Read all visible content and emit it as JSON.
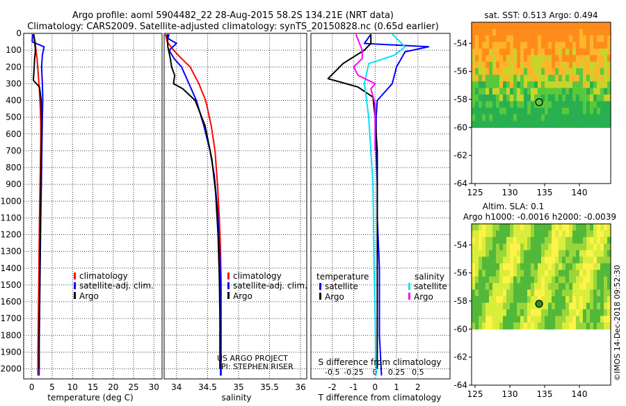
{
  "header": {
    "line1": "Argo profile: aoml 5904482_22 28-Aug-2015 58.2S 134.21E (NRT data)",
    "line2": "Climatology: CARS2009. Satellite-adjusted climatology: synTS_20150828.nc (0.65d earlier)"
  },
  "chart_data": [
    {
      "type": "line",
      "name": "temperature-profile",
      "xlabel": "temperature (deg C)",
      "ylabel": "depth (dbar)",
      "xlim": [
        -2,
        32
      ],
      "ylim": [
        2060,
        0
      ],
      "xticks": [
        0,
        5,
        10,
        15,
        20,
        25,
        30
      ],
      "yticks": [
        0,
        100,
        200,
        300,
        400,
        500,
        600,
        700,
        800,
        900,
        1000,
        1100,
        1200,
        1300,
        1400,
        1500,
        1600,
        1700,
        1800,
        1900,
        2000
      ],
      "legend": [
        "climatology",
        "satellite-adj. clim.",
        "Argo"
      ],
      "series": [
        {
          "name": "climatology",
          "color": "#ff0000",
          "x": [
            0.4,
            0.8,
            1.0,
            1.3,
            1.6,
            1.9,
            2.1,
            2.2,
            2.2,
            2.1,
            2.0,
            1.9,
            1.8,
            1.7,
            1.6,
            1.5,
            1.5
          ],
          "y": [
            5,
            50,
            100,
            150,
            250,
            350,
            450,
            550,
            650,
            800,
            950,
            1100,
            1300,
            1500,
            1700,
            1900,
            2040
          ]
        },
        {
          "name": "satellite-adj. clim.",
          "color": "#0000ff",
          "x": [
            0.2,
            0.1,
            3.0,
            2.6,
            2.4,
            2.6,
            2.7,
            2.6,
            2.5,
            2.4,
            2.3,
            2.2,
            2.1,
            2.0,
            1.9,
            1.8,
            1.8
          ],
          "y": [
            5,
            50,
            80,
            130,
            200,
            300,
            400,
            500,
            650,
            800,
            950,
            1100,
            1300,
            1500,
            1700,
            1900,
            2040
          ]
        },
        {
          "name": "Argo",
          "color": "#000000",
          "x": [
            0.5,
            0.7,
            0.9,
            0.7,
            0.6,
            0.4,
            1.9,
            2.3,
            2.4,
            2.3,
            2.2,
            2.1,
            2.0,
            1.9,
            1.8,
            1.8
          ],
          "y": [
            5,
            50,
            100,
            150,
            200,
            280,
            320,
            400,
            550,
            750,
            950,
            1200,
            1400,
            1600,
            1800,
            2000
          ]
        }
      ]
    },
    {
      "type": "line",
      "name": "salinity-profile",
      "xlabel": "salinity",
      "xlim": [
        33.8,
        36.1
      ],
      "ylim": [
        2060,
        0
      ],
      "xticks": [
        34,
        34.5,
        35,
        35.5,
        36
      ],
      "xtick_labels": [
        "34",
        "34.5",
        "35",
        "35.5",
        "36"
      ],
      "legend": [
        "climatology",
        "satellite-adj. clim.",
        "Argo"
      ],
      "series": [
        {
          "name": "climatology",
          "color": "#ff0000",
          "x": [
            33.82,
            33.85,
            33.95,
            34.08,
            34.22,
            34.36,
            34.47,
            34.56,
            34.62,
            34.66,
            34.69,
            34.71,
            34.72,
            34.72,
            34.72,
            34.72
          ],
          "y": [
            5,
            50,
            100,
            150,
            200,
            300,
            400,
            550,
            700,
            900,
            1100,
            1300,
            1500,
            1700,
            1900,
            2040
          ]
        },
        {
          "name": "satellite-adj. clim.",
          "color": "#0000ff",
          "x": [
            33.88,
            33.86,
            34.0,
            33.88,
            33.96,
            34.08,
            34.2,
            34.32,
            34.44,
            34.54,
            34.61,
            34.66,
            34.69,
            34.71,
            34.71,
            34.71,
            34.71
          ],
          "y": [
            5,
            30,
            60,
            100,
            150,
            200,
            300,
            400,
            550,
            700,
            850,
            1050,
            1250,
            1450,
            1650,
            1850,
            2040
          ]
        },
        {
          "name": "Argo",
          "color": "#000000",
          "x": [
            33.85,
            33.86,
            33.9,
            33.92,
            33.97,
            33.95,
            34.1,
            34.3,
            34.46,
            34.57,
            34.63,
            34.67,
            34.69,
            34.7,
            34.7
          ],
          "y": [
            5,
            80,
            150,
            200,
            250,
            300,
            330,
            400,
            550,
            750,
            950,
            1200,
            1450,
            1700,
            2000
          ]
        }
      ],
      "annotation": [
        "US ARGO PROJECT",
        "PI: STEPHEN RISER"
      ]
    },
    {
      "type": "line",
      "name": "difference-profile",
      "xlabel": "T difference from climatology",
      "xlabel_top": "S difference from climatology",
      "xlim": [
        -3,
        3.5
      ],
      "ylim": [
        2060,
        0
      ],
      "xticks": [
        -2,
        -1,
        0,
        1,
        2
      ],
      "xtick_labels": [
        "-2",
        "-1",
        "0",
        "1",
        "2"
      ],
      "sticks": [
        -0.5,
        -0.25,
        0,
        0.25,
        0.5
      ],
      "stick_labels": [
        "-0.5",
        "-0.25",
        "0",
        "0.25",
        "0.5"
      ],
      "legend_left_title": "temperature",
      "legend_right_title": "salinity",
      "legend_left": [
        "satellite",
        "Argo"
      ],
      "legend_right": [
        "satellite",
        "Argo"
      ],
      "series": [
        {
          "name": "T satellite",
          "color": "#0000ff",
          "x": [
            -0.2,
            -0.5,
            2.5,
            1.4,
            1.0,
            0.8,
            0.1,
            0.05,
            0.05,
            0.1,
            0.1,
            0.2,
            0.2,
            0.2,
            0.3
          ],
          "y": [
            5,
            60,
            80,
            110,
            200,
            300,
            400,
            500,
            700,
            900,
            1100,
            1400,
            1600,
            1800,
            2040
          ]
        },
        {
          "name": "T Argo",
          "color": "#000000",
          "x": [
            -0.2,
            -0.2,
            -0.5,
            -1.5,
            -2.2,
            -0.8,
            -0.1,
            0.0,
            0.1,
            0.1,
            0.1,
            0.1,
            0.1,
            0.1
          ],
          "y": [
            5,
            60,
            100,
            180,
            270,
            320,
            380,
            500,
            700,
            1000,
            1300,
            1600,
            1800,
            2000
          ]
        },
        {
          "name": "S satellite",
          "color": "#00e0ff",
          "x": [
            0.8,
            1.0,
            1.4,
            0.9,
            -0.3,
            -0.5,
            -0.3,
            -0.1,
            -0.05,
            0.0,
            0.05
          ],
          "y": [
            5,
            30,
            80,
            130,
            180,
            300,
            500,
            900,
            1400,
            1700,
            2040
          ]
        },
        {
          "name": "S Argo",
          "color": "#ff00ff",
          "x": [
            -0.9,
            -0.6,
            -0.6,
            -1.0,
            -0.8,
            0.0,
            -0.2,
            0.0,
            0.0,
            0.0
          ],
          "y": [
            5,
            100,
            150,
            200,
            250,
            300,
            330,
            420,
            550,
            700
          ]
        }
      ]
    },
    {
      "type": "heatmap",
      "name": "sat-sst-map",
      "title": "sat. SST: 0.513 Argo: 0.494",
      "xlim": [
        124.5,
        144.5
      ],
      "ylim": [
        -64,
        -52.5
      ],
      "xticks": [
        125,
        130,
        135,
        140
      ],
      "yticks": [
        -54,
        -56,
        -58,
        -60,
        -62,
        -64
      ],
      "marker": [
        134.21,
        -58.2
      ]
    },
    {
      "type": "heatmap",
      "name": "sla-map",
      "title": "Altim. SLA: 0.1",
      "subtitle": "Argo h1000: -0.0016 h2000: -0.0039",
      "xlim": [
        124.5,
        144.5
      ],
      "ylim": [
        -64,
        -52.5
      ],
      "xticks": [
        125,
        130,
        135,
        140
      ],
      "yticks": [
        -54,
        -56,
        -58,
        -60,
        -62,
        -64
      ],
      "marker": [
        134.21,
        -58.2
      ]
    }
  ],
  "side_stamp": "©IMOS 14-Dec-2018 09:52:30"
}
